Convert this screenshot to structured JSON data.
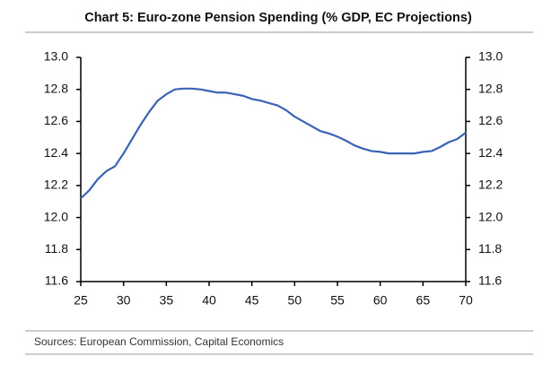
{
  "chart_data": {
    "type": "line",
    "title": "Chart 5: Euro-zone Pension Spending (% GDP, EC Projections)",
    "source": "Sources:  European Commission, Capital Economics",
    "x": [
      25,
      26,
      27,
      28,
      29,
      30,
      31,
      32,
      33,
      34,
      35,
      36,
      37,
      38,
      39,
      40,
      41,
      42,
      43,
      44,
      45,
      46,
      47,
      48,
      49,
      50,
      51,
      52,
      53,
      54,
      55,
      56,
      57,
      58,
      59,
      60,
      61,
      62,
      63,
      64,
      65,
      66,
      67,
      68,
      69,
      70
    ],
    "values": [
      12.12,
      12.17,
      12.24,
      12.29,
      12.32,
      12.4,
      12.49,
      12.58,
      12.66,
      12.73,
      12.77,
      12.8,
      12.805,
      12.805,
      12.8,
      12.79,
      12.78,
      12.78,
      12.77,
      12.76,
      12.74,
      12.73,
      12.715,
      12.7,
      12.67,
      12.63,
      12.6,
      12.57,
      12.54,
      12.525,
      12.505,
      12.48,
      12.45,
      12.43,
      12.415,
      12.41,
      12.4,
      12.4,
      12.4,
      12.4,
      12.41,
      12.415,
      12.44,
      12.47,
      12.49,
      12.53
    ],
    "color": "#3a62b5",
    "xlim": [
      25,
      70
    ],
    "xticks": [
      25,
      30,
      35,
      40,
      45,
      50,
      55,
      60,
      65,
      70
    ],
    "ylim": [
      11.6,
      13.0
    ],
    "yticks": [
      11.6,
      11.8,
      {
        "value": 12,
        "label": "12.0"
      },
      12.2,
      12.4,
      12.6,
      12.8,
      {
        "value": 13,
        "label": "13.0"
      }
    ],
    "y2lim": [
      11.6,
      13.0
    ],
    "y2ticks": [
      11.6,
      11.8,
      {
        "value": 12,
        "label": "12.0"
      },
      12.2,
      12.4,
      12.6,
      12.8,
      {
        "value": 13,
        "label": "13.0"
      }
    ],
    "grid": false
  }
}
